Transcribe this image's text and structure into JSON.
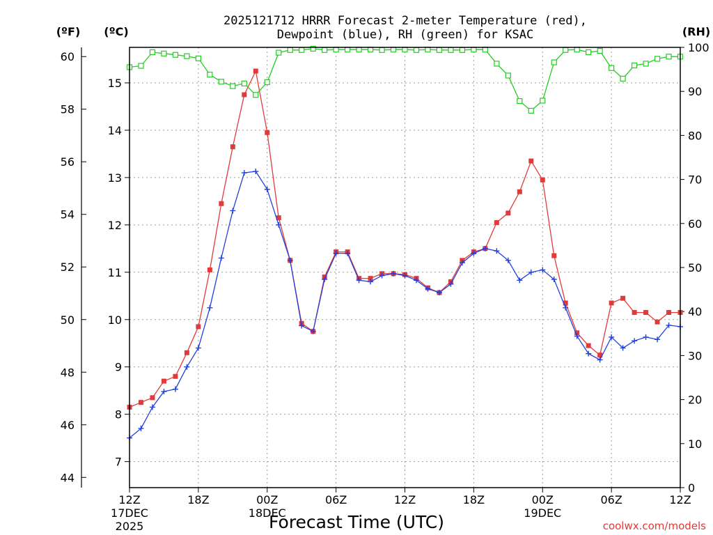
{
  "chart_data": {
    "type": "line",
    "title_line1": "2025121712 HRRR Forecast 2-meter Temperature (red),",
    "title_line2": "Dewpoint (blue), RH (green) for KSAC",
    "xlabel": "Forecast Time (UTC)",
    "credit": "coolwx.com/models",
    "units": {
      "left_f": "(ºF)",
      "left_c": "(ºC)",
      "right_rh": "(RH)"
    },
    "x_range": [
      0,
      48
    ],
    "left_f_ticks": [
      "44",
      "46",
      "48",
      "50",
      "52",
      "54",
      "56",
      "58",
      "60"
    ],
    "left_c_ticks": [
      "7",
      "8",
      "9",
      "10",
      "11",
      "12",
      "13",
      "14",
      "15"
    ],
    "right_rh_ticks": [
      "0",
      "10",
      "20",
      "30",
      "40",
      "50",
      "60",
      "70",
      "80",
      "90",
      "100"
    ],
    "ylim_celsius": [
      6.45,
      15.75
    ],
    "ylim_rh": [
      0,
      100
    ],
    "x_ticks": [
      {
        "hour": 0,
        "label": "12Z",
        "date": "17DEC",
        "year": "2025"
      },
      {
        "hour": 6,
        "label": "18Z",
        "date": "",
        "year": ""
      },
      {
        "hour": 12,
        "label": "00Z",
        "date": "18DEC",
        "year": ""
      },
      {
        "hour": 18,
        "label": "06Z",
        "date": "",
        "year": ""
      },
      {
        "hour": 24,
        "label": "12Z",
        "date": "",
        "year": ""
      },
      {
        "hour": 30,
        "label": "18Z",
        "date": "",
        "year": ""
      },
      {
        "hour": 36,
        "label": "00Z",
        "date": "19DEC",
        "year": ""
      },
      {
        "hour": 42,
        "label": "06Z",
        "date": "",
        "year": ""
      },
      {
        "hour": 48,
        "label": "12Z",
        "date": "",
        "year": ""
      }
    ],
    "series": [
      {
        "name": "Temperature",
        "unit": "C",
        "color": "#e23a3a",
        "values": [
          8.15,
          8.25,
          8.35,
          8.7,
          8.8,
          9.3,
          9.85,
          11.05,
          12.45,
          13.65,
          14.75,
          15.25,
          13.95,
          12.15,
          11.25,
          9.92,
          9.75,
          10.9,
          11.43,
          11.43,
          10.87,
          10.87,
          10.97,
          10.97,
          10.95,
          10.87,
          10.67,
          10.57,
          10.8,
          11.25,
          11.43,
          11.5,
          12.05,
          12.25,
          12.7,
          13.35,
          12.95,
          11.35,
          10.35,
          9.72,
          9.45,
          9.25,
          10.35,
          10.45,
          10.15,
          10.15,
          9.95,
          10.15,
          10.15
        ]
      },
      {
        "name": "Dewpoint",
        "unit": "C",
        "color": "#2040e0",
        "values": [
          7.5,
          7.7,
          8.15,
          8.48,
          8.53,
          9.0,
          9.4,
          10.25,
          11.3,
          12.3,
          13.1,
          13.13,
          12.75,
          12.0,
          11.25,
          9.87,
          9.75,
          10.85,
          11.4,
          11.4,
          10.83,
          10.8,
          10.93,
          10.97,
          10.93,
          10.83,
          10.65,
          10.57,
          10.75,
          11.2,
          11.4,
          11.5,
          11.45,
          11.25,
          10.83,
          11.0,
          11.05,
          10.85,
          10.25,
          9.65,
          9.28,
          9.15,
          9.63,
          9.4,
          9.55,
          9.63,
          9.58,
          9.88,
          9.85
        ]
      },
      {
        "name": "RH",
        "unit": "%",
        "color": "#22cc22",
        "values": [
          95.5,
          95.8,
          98.9,
          98.6,
          98.3,
          98.0,
          97.5,
          93.8,
          92.2,
          91.2,
          91.8,
          89.2,
          92.1,
          98.8,
          99.4,
          99.4,
          99.7,
          99.4,
          99.5,
          99.5,
          99.5,
          99.5,
          99.4,
          99.5,
          99.5,
          99.4,
          99.5,
          99.4,
          99.4,
          99.4,
          99.5,
          99.5,
          96.3,
          93.6,
          87.8,
          85.6,
          87.9,
          96.6,
          99.4,
          99.5,
          98.9,
          99.2,
          95.3,
          92.9,
          95.9,
          96.3,
          97.4,
          97.9,
          97.9
        ]
      }
    ]
  }
}
